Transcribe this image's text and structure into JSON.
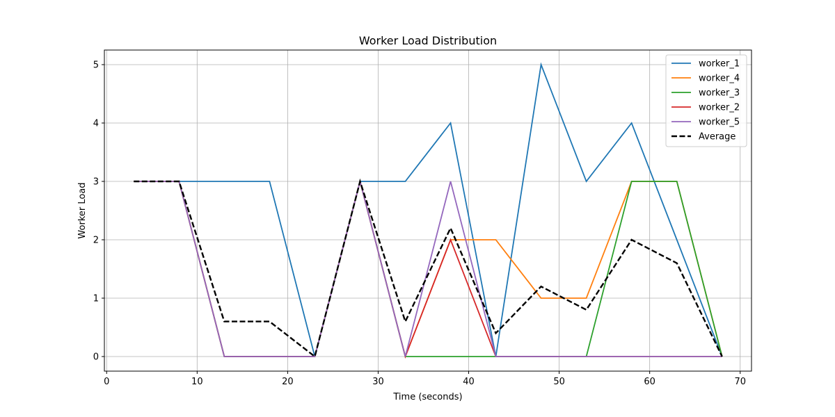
{
  "chart_data": {
    "type": "line",
    "title": "Worker Load Distribution",
    "xlabel": "Time (seconds)",
    "ylabel": "Worker Load",
    "xlim": [
      -0.25,
      71.25
    ],
    "ylim": [
      -0.25,
      5.25
    ],
    "xticks": [
      0,
      10,
      20,
      30,
      40,
      50,
      60,
      70
    ],
    "yticks": [
      0,
      1,
      2,
      3,
      4,
      5
    ],
    "grid": true,
    "legend_position": "top-right",
    "x": [
      3,
      8,
      13,
      18,
      23,
      28,
      33,
      38,
      43,
      48,
      53,
      58,
      63,
      68
    ],
    "series": [
      {
        "name": "worker_1",
        "color": "#1f77b4",
        "style": "solid",
        "values": [
          3,
          3,
          3,
          3,
          0,
          3,
          3,
          4,
          0,
          5,
          3,
          4,
          2,
          0
        ]
      },
      {
        "name": "worker_4",
        "color": "#ff7f0e",
        "style": "solid",
        "values": [
          3,
          3,
          0,
          0,
          0,
          3,
          0,
          2,
          2,
          1,
          1,
          3,
          3,
          0
        ]
      },
      {
        "name": "worker_3",
        "color": "#2ca02c",
        "style": "solid",
        "values": [
          3,
          3,
          0,
          0,
          0,
          3,
          0,
          0,
          0,
          0,
          0,
          3,
          3,
          0
        ]
      },
      {
        "name": "worker_2",
        "color": "#d62728",
        "style": "solid",
        "values": [
          3,
          3,
          0,
          0,
          0,
          3,
          0,
          2,
          0,
          0,
          0,
          0,
          0,
          0
        ]
      },
      {
        "name": "worker_5",
        "color": "#9467bd",
        "style": "solid",
        "values": [
          3,
          3,
          0,
          0,
          0,
          3,
          0,
          3,
          0,
          0,
          0,
          0,
          0,
          0
        ]
      },
      {
        "name": "Average",
        "color": "#000000",
        "style": "dashed",
        "values": [
          3,
          3,
          0.6,
          0.6,
          0,
          3,
          0.6,
          2.2,
          0.4,
          1.2,
          0.8,
          2,
          1.6,
          0
        ]
      }
    ]
  }
}
